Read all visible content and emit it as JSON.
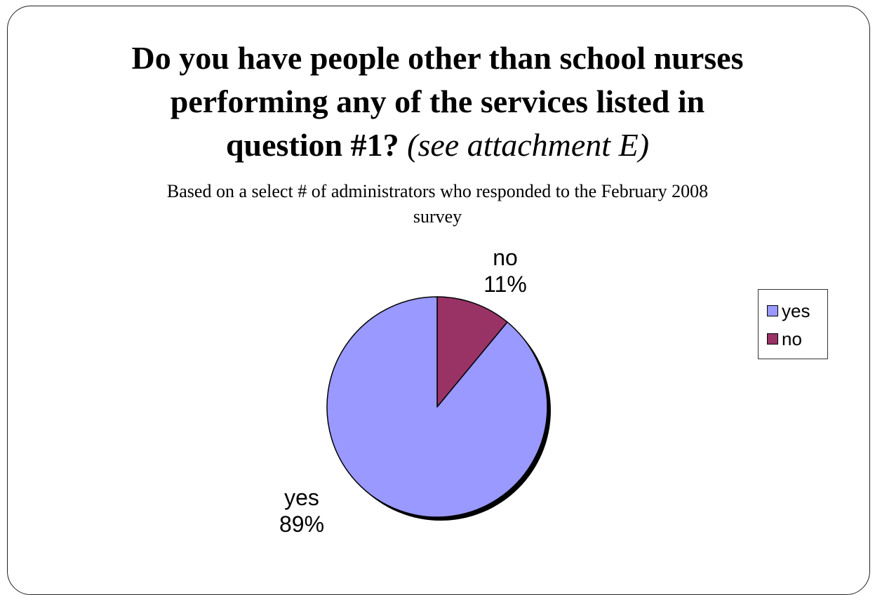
{
  "slide": {
    "title_line1": "Do you have people other than school nurses",
    "title_line2": "performing any of the services listed in",
    "title_line3_bold": "question #1?",
    "title_line3_italic": "(see attachment E)",
    "subtitle_line1": "Based on a select # of administrators who responded to the February 2008",
    "subtitle_line2": "survey"
  },
  "chart_data": {
    "type": "pie",
    "title": "Do you have people other than school nurses performing any of the services listed in question #1? (see attachment E)",
    "subtitle": "Based on a select # of administrators who responded to the February 2008 survey",
    "categories": [
      "yes",
      "no"
    ],
    "values": [
      89,
      11
    ],
    "labels": [
      {
        "category": "yes",
        "percent": "89%"
      },
      {
        "category": "no",
        "percent": "11%"
      }
    ],
    "colors": [
      "#9999ff",
      "#993366"
    ],
    "legend": {
      "position": "right",
      "items": [
        {
          "label": "yes",
          "color": "#9999ff"
        },
        {
          "label": "no",
          "color": "#993366"
        }
      ]
    }
  }
}
